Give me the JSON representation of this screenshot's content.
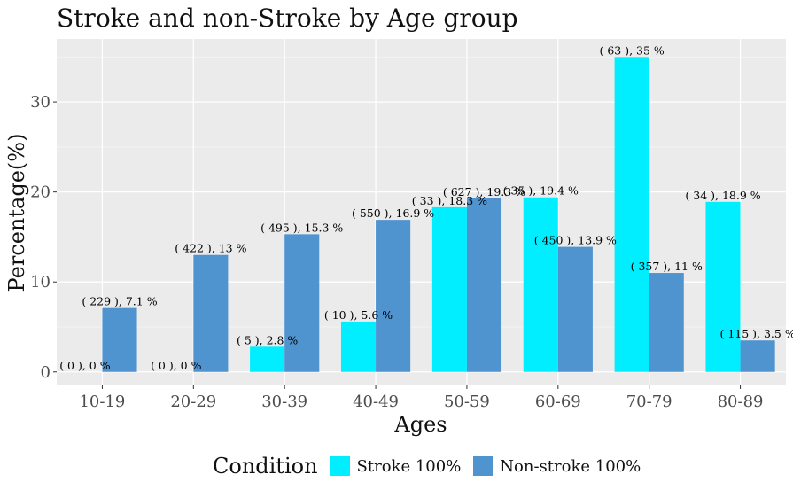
{
  "chart_data": {
    "type": "bar",
    "title": "Stroke and non-Stroke by Age group",
    "xlabel": "Ages",
    "ylabel": "Percentage(%)",
    "ylim": [
      -1.5,
      37
    ],
    "yticks": [
      0,
      10,
      20,
      30
    ],
    "grid": true,
    "legend_placement": "bottom",
    "legend_title": "Condition",
    "categories": [
      "10-19",
      "20-29",
      "30-39",
      "40-49",
      "50-59",
      "60-69",
      "70-79",
      "80-89"
    ],
    "series": [
      {
        "name": "Stroke 100%",
        "color": "#00EEFF",
        "values": [
          0,
          0,
          2.8,
          5.6,
          18.3,
          19.4,
          35,
          18.9
        ],
        "labels": [
          "( 0 ), 0 %",
          "( 0 ), 0 %",
          "( 5 ), 2.8 %",
          "( 10 ), 5.6 %",
          "( 33 ), 18.3 %",
          "( 35 ), 19.4 %",
          "( 63 ), 35 %",
          "( 34 ), 18.9 %"
        ]
      },
      {
        "name": "Non-stroke 100%",
        "color": "#4F93CF",
        "values": [
          7.1,
          13,
          15.3,
          16.9,
          19.3,
          13.9,
          11,
          3.5
        ],
        "labels": [
          "( 229 ), 7.1 %",
          "( 422 ), 13 %",
          "( 495 ), 15.3 %",
          "( 550 ), 16.9 %",
          "( 627 ), 19.3 %",
          "( 450 ), 13.9 %",
          "( 357 ), 11 %",
          "( 115 ), 3.5 %"
        ]
      }
    ]
  }
}
